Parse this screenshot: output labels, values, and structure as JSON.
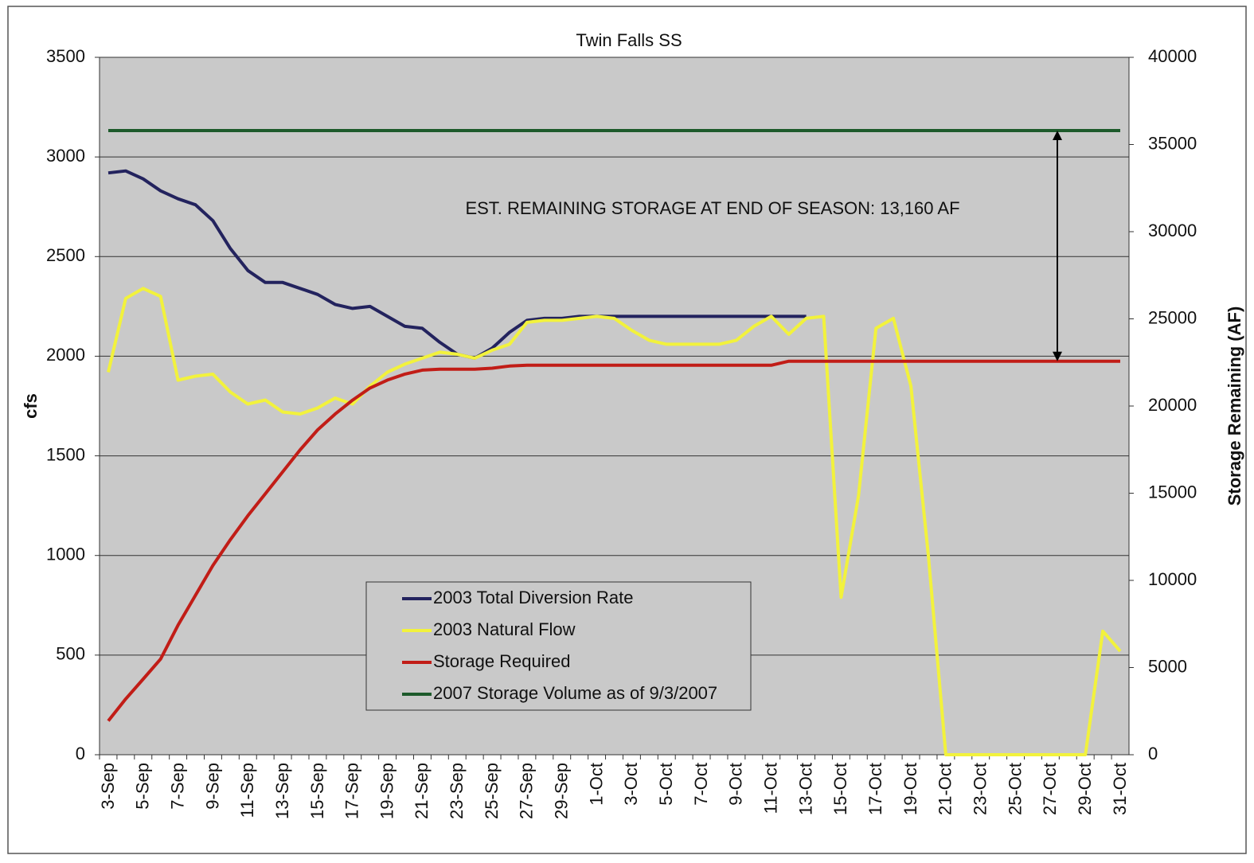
{
  "chart_data": {
    "type": "line",
    "title": "Twin Falls SS",
    "y_label": "cfs",
    "y2_label": "Storage Remaining (AF)",
    "annotation": "EST. REMAINING STORAGE AT END OF SEASON:  13,160 AF",
    "categories": [
      "3-Sep",
      null,
      "5-Sep",
      null,
      "7-Sep",
      null,
      "9-Sep",
      null,
      "11-Sep",
      null,
      "13-Sep",
      null,
      "15-Sep",
      null,
      "17-Sep",
      null,
      "19-Sep",
      null,
      "21-Sep",
      null,
      "23-Sep",
      null,
      "25-Sep",
      null,
      "27-Sep",
      null,
      "29-Sep",
      null,
      "1-Oct",
      null,
      "3-Oct",
      null,
      "5-Oct",
      null,
      "7-Oct",
      null,
      "9-Oct",
      null,
      "11-Oct",
      null,
      "13-Oct",
      null,
      "15-Oct",
      null,
      "17-Oct",
      null,
      "19-Oct",
      null,
      "21-Oct",
      null,
      "23-Oct",
      null,
      "25-Oct",
      null,
      "27-Oct",
      null,
      "29-Oct",
      null,
      "31-Oct"
    ],
    "series": [
      {
        "name": "2003 Total Diversion Rate",
        "color": "#23235e",
        "axis": "y",
        "values": [
          2920,
          2930,
          2890,
          2830,
          2790,
          2760,
          2680,
          2540,
          2430,
          2370,
          2370,
          2340,
          2310,
          2260,
          2240,
          2250,
          2200,
          2150,
          2140,
          2070,
          2010,
          1990,
          2040,
          2120,
          2180,
          2190,
          2190,
          2200,
          2200,
          2200,
          2200,
          2200,
          2200,
          2200,
          2200,
          2200,
          2200,
          2200,
          2200,
          2200,
          2200,
          null,
          null,
          null,
          null,
          null,
          null,
          null,
          null,
          null,
          null,
          null,
          null,
          null,
          null,
          null,
          null,
          null,
          null
        ]
      },
      {
        "name": "2003 Natural Flow",
        "color": "#f2f23c",
        "axis": "y",
        "values": [
          1920,
          2290,
          2340,
          2300,
          1880,
          1900,
          1910,
          1820,
          1760,
          1780,
          1720,
          1710,
          1740,
          1790,
          1760,
          1850,
          1920,
          1960,
          1990,
          2020,
          2010,
          1990,
          2030,
          2060,
          2170,
          2180,
          2180,
          2190,
          2200,
          2190,
          2130,
          2080,
          2060,
          2060,
          2060,
          2060,
          2080,
          2150,
          2200,
          2110,
          2190,
          2200,
          790,
          1300,
          2140,
          2190,
          1850,
          1000,
          0,
          0,
          0,
          0,
          0,
          0,
          0,
          0,
          0,
          620,
          520
        ]
      },
      {
        "name": "Storage Required",
        "color": "#c11d17",
        "axis": "y2",
        "values": [
          1940,
          3200,
          4340,
          5490,
          7430,
          9140,
          10860,
          12340,
          13710,
          14970,
          16230,
          17490,
          18630,
          19540,
          20340,
          21030,
          21490,
          21830,
          22060,
          22110,
          22110,
          22110,
          22170,
          22290,
          22340,
          22340,
          22340,
          22340,
          22340,
          22340,
          22340,
          22340,
          22340,
          22340,
          22340,
          22340,
          22340,
          22340,
          22340,
          22570,
          22570,
          22570,
          22570,
          22570,
          22570,
          22570,
          22570,
          22570,
          22570,
          22570,
          22570,
          22570,
          22570,
          22570,
          22570,
          22570,
          22570,
          22570,
          22570
        ]
      },
      {
        "name": "2007 Storage Volume as of 9/3/2007",
        "color": "#1d5a2b",
        "axis": "y2",
        "values": [
          35800,
          35800,
          35800,
          35800,
          35800,
          35800,
          35800,
          35800,
          35800,
          35800,
          35800,
          35800,
          35800,
          35800,
          35800,
          35800,
          35800,
          35800,
          35800,
          35800,
          35800,
          35800,
          35800,
          35800,
          35800,
          35800,
          35800,
          35800,
          35800,
          35800,
          35800,
          35800,
          35800,
          35800,
          35800,
          35800,
          35800,
          35800,
          35800,
          35800,
          35800,
          35800,
          35800,
          35800,
          35800,
          35800,
          35800,
          35800,
          35800,
          35800,
          35800,
          35800,
          35800,
          35800,
          35800,
          35800,
          35800,
          35800,
          35800
        ]
      }
    ],
    "ylim": [
      0,
      3500
    ],
    "yticks": [
      0,
      500,
      1000,
      1500,
      2000,
      2500,
      3000,
      3500
    ],
    "y2lim": [
      0,
      40000
    ],
    "y2ticks": [
      0,
      5000,
      10000,
      15000,
      20000,
      25000,
      30000,
      35000,
      40000
    ],
    "grid": true,
    "legend": "lower center"
  }
}
